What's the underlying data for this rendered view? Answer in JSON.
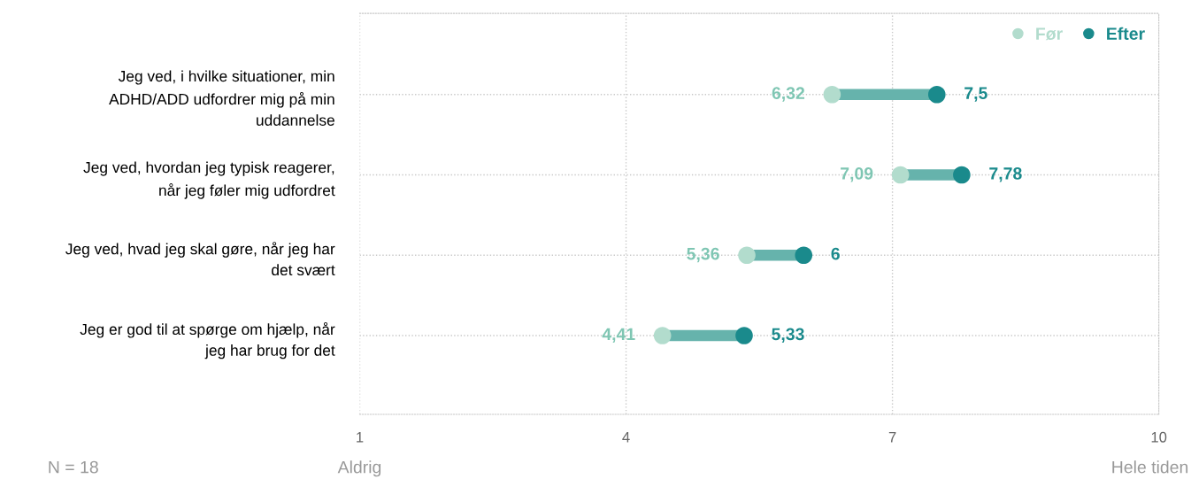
{
  "chart_data": {
    "type": "scatter",
    "orientation": "horizontal",
    "categories": [
      "Jeg ved, i hvilke situationer, min\nADHD/ADD udfordrer mig på min\nuddannelse",
      "Jeg ved, hvordan jeg typisk reagerer,\nnår jeg føler mig udfordret",
      "Jeg ved, hvad jeg skal gøre, når jeg har\ndet svært",
      "Jeg er god til at spørge om hjælp, når\njeg har brug for det"
    ],
    "series": [
      {
        "name": "Før",
        "color": "#b2dccd",
        "values": [
          6.32,
          7.09,
          5.36,
          4.41
        ],
        "value_labels": [
          "6,32",
          "7,09",
          "5,36",
          "4,41"
        ]
      },
      {
        "name": "Efter",
        "color": "#1a8a8c",
        "values": [
          7.5,
          7.78,
          6,
          5.33
        ],
        "value_labels": [
          "7,5",
          "7,78",
          "6",
          "5,33"
        ]
      }
    ],
    "xlim": [
      1,
      10
    ],
    "xticks": [
      1,
      4,
      7,
      10
    ],
    "grid": true,
    "legend": "top right",
    "marker": "circle",
    "annotations": [
      "N = 18",
      "Aldrig",
      "Hele tiden"
    ]
  }
}
